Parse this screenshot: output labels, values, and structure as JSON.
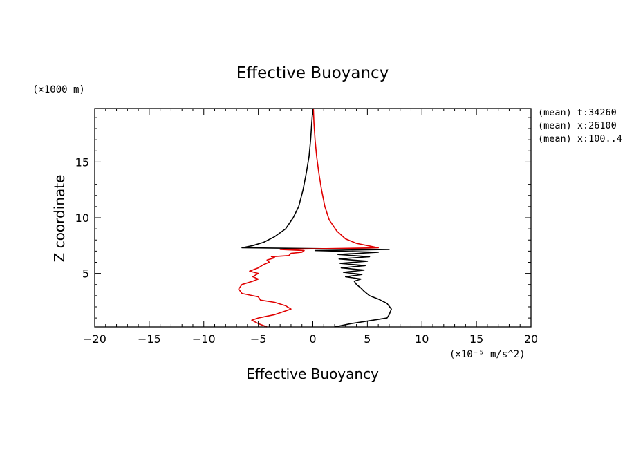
{
  "chart_data": {
    "type": "line",
    "title": "Effective Buoyancy",
    "xlabel": "Effective Buoyancy",
    "ylabel": "Z coordinate",
    "x_unit": "(×10⁻⁵ m/s^2)",
    "y_unit": "(×1000 m)",
    "xlim": [
      -20,
      20
    ],
    "ylim": [
      0.2,
      19.8
    ],
    "x_ticks": [
      -20,
      -15,
      -10,
      -5,
      0,
      5,
      10,
      15,
      20
    ],
    "y_ticks": [
      5,
      10,
      15
    ],
    "grid": false,
    "annotations": [
      "(mean) t:34260",
      "(mean) x:26100",
      "(mean) x:100..4"
    ],
    "series": [
      {
        "color": "#000000",
        "points": [
          [
            2.0,
            0.2
          ],
          [
            3.5,
            0.5
          ],
          [
            5.5,
            0.8
          ],
          [
            6.8,
            1.0
          ],
          [
            7.0,
            1.3
          ],
          [
            7.2,
            1.8
          ],
          [
            6.8,
            2.3
          ],
          [
            6.0,
            2.7
          ],
          [
            5.2,
            3.0
          ],
          [
            4.7,
            3.4
          ],
          [
            4.4,
            3.7
          ],
          [
            4.0,
            4.0
          ],
          [
            3.8,
            4.3
          ],
          [
            4.4,
            4.5
          ],
          [
            3.0,
            4.7
          ],
          [
            4.5,
            4.9
          ],
          [
            2.8,
            5.1
          ],
          [
            4.7,
            5.3
          ],
          [
            2.6,
            5.5
          ],
          [
            4.8,
            5.7
          ],
          [
            2.5,
            5.9
          ],
          [
            5.0,
            6.1
          ],
          [
            2.4,
            6.3
          ],
          [
            5.2,
            6.5
          ],
          [
            2.3,
            6.7
          ],
          [
            6.0,
            6.9
          ],
          [
            0.2,
            7.05
          ],
          [
            7.0,
            7.15
          ],
          [
            -6.5,
            7.3
          ],
          [
            -5.5,
            7.5
          ],
          [
            -4.5,
            7.8
          ],
          [
            -3.5,
            8.3
          ],
          [
            -2.5,
            9.0
          ],
          [
            -1.8,
            10.0
          ],
          [
            -1.3,
            11.0
          ],
          [
            -0.9,
            12.5
          ],
          [
            -0.6,
            14.0
          ],
          [
            -0.35,
            15.5
          ],
          [
            -0.2,
            17.0
          ],
          [
            -0.1,
            18.5
          ],
          [
            0.0,
            19.8
          ]
        ]
      },
      {
        "color": "#e00000",
        "points": [
          [
            -4.2,
            0.2
          ],
          [
            -5.0,
            0.5
          ],
          [
            -5.6,
            0.8
          ],
          [
            -5.0,
            1.0
          ],
          [
            -3.5,
            1.3
          ],
          [
            -2.0,
            1.8
          ],
          [
            -2.5,
            2.1
          ],
          [
            -3.5,
            2.4
          ],
          [
            -4.8,
            2.6
          ],
          [
            -5.0,
            2.9
          ],
          [
            -6.5,
            3.2
          ],
          [
            -6.8,
            3.6
          ],
          [
            -6.5,
            4.0
          ],
          [
            -5.5,
            4.3
          ],
          [
            -5.0,
            4.5
          ],
          [
            -5.5,
            4.7
          ],
          [
            -5.0,
            5.0
          ],
          [
            -5.8,
            5.2
          ],
          [
            -5.0,
            5.5
          ],
          [
            -4.5,
            5.8
          ],
          [
            -4.0,
            6.0
          ],
          [
            -4.2,
            6.2
          ],
          [
            -3.5,
            6.4
          ],
          [
            -3.8,
            6.5
          ],
          [
            -2.2,
            6.6
          ],
          [
            -2.0,
            6.8
          ],
          [
            -1.0,
            6.9
          ],
          [
            -0.8,
            7.05
          ],
          [
            -3.0,
            7.15
          ],
          [
            6.0,
            7.3
          ],
          [
            5.0,
            7.5
          ],
          [
            4.0,
            7.7
          ],
          [
            3.0,
            8.1
          ],
          [
            2.2,
            8.8
          ],
          [
            1.5,
            9.8
          ],
          [
            1.1,
            11.0
          ],
          [
            0.8,
            12.5
          ],
          [
            0.55,
            14.0
          ],
          [
            0.35,
            15.5
          ],
          [
            0.2,
            17.0
          ],
          [
            0.1,
            18.5
          ],
          [
            0.05,
            19.8
          ]
        ]
      }
    ]
  }
}
